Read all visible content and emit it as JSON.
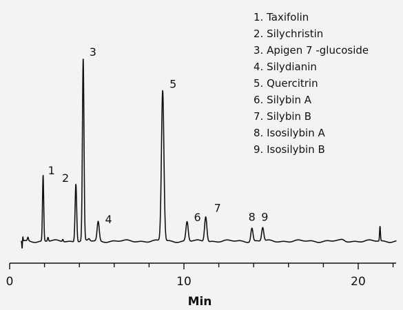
{
  "chart_data": {
    "type": "line",
    "title": "",
    "xlabel": "Min",
    "ylabel": "",
    "xlim": [
      0,
      22
    ],
    "xticks": [
      0,
      10,
      20
    ],
    "grid": false,
    "legend_placement": "top-right",
    "legend": [
      "1. Taxifolin",
      "2. Silychristin",
      "3. Apigen 7 -glucoside",
      "4. Silydianin",
      "5. Quercitrin",
      "6. Silybin A",
      "7. Silybin B",
      "8. Isosilybin A",
      "9. Isosilybin B"
    ],
    "baseline": 0,
    "peaks": [
      {
        "label": "1",
        "x": 1.92,
        "y": 0.34
      },
      {
        "label": "2",
        "x": 3.8,
        "y": 0.3
      },
      {
        "label": "3",
        "x": 4.22,
        "y": 0.94
      },
      {
        "label": "4",
        "x": 5.08,
        "y": 0.1
      },
      {
        "label": "5",
        "x": 8.78,
        "y": 0.78
      },
      {
        "label": "6",
        "x": 10.18,
        "y": 0.1
      },
      {
        "label": "7",
        "x": 11.25,
        "y": 0.13
      },
      {
        "label": "8",
        "x": 13.9,
        "y": 0.07
      },
      {
        "label": "9",
        "x": 14.52,
        "y": 0.07
      }
    ]
  }
}
